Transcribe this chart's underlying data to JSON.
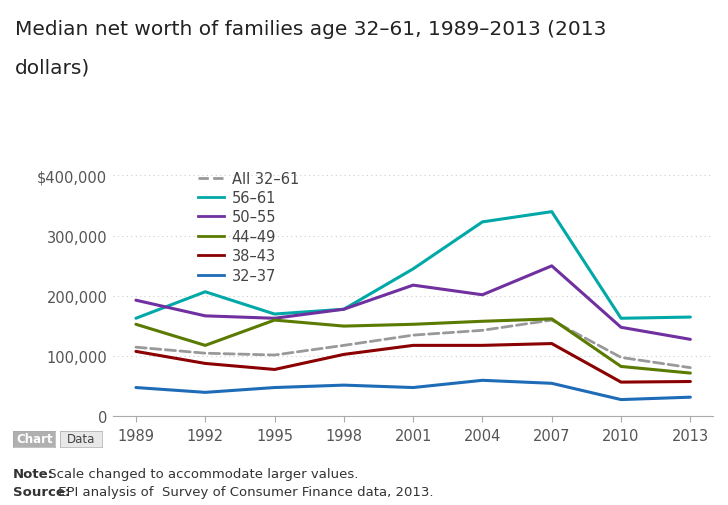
{
  "title_line1": "Median net worth of families age 32–61, 1989–2013 (2013",
  "title_line2": "dollars)",
  "years": [
    1989,
    1992,
    1995,
    1998,
    2001,
    2004,
    2007,
    2010,
    2013
  ],
  "series": {
    "All 32–61": {
      "values": [
        115000,
        105000,
        102000,
        118000,
        135000,
        143000,
        160000,
        98000,
        81000
      ],
      "color": "#999999",
      "style": "dashed",
      "linewidth": 2.0
    },
    "56–61": {
      "values": [
        163000,
        207000,
        170000,
        178000,
        245000,
        323000,
        340000,
        163000,
        165000
      ],
      "color": "#00a8a8",
      "style": "solid",
      "linewidth": 2.2
    },
    "50–55": {
      "values": [
        193000,
        167000,
        163000,
        178000,
        218000,
        202000,
        250000,
        148000,
        128000
      ],
      "color": "#7030a0",
      "style": "solid",
      "linewidth": 2.2
    },
    "44–49": {
      "values": [
        153000,
        118000,
        160000,
        150000,
        153000,
        158000,
        162000,
        83000,
        72000
      ],
      "color": "#5a7a00",
      "style": "solid",
      "linewidth": 2.2
    },
    "38–43": {
      "values": [
        108000,
        88000,
        78000,
        103000,
        118000,
        118000,
        121000,
        57000,
        58000
      ],
      "color": "#8b0000",
      "style": "solid",
      "linewidth": 2.2
    },
    "32–37": {
      "values": [
        48000,
        40000,
        48000,
        52000,
        48000,
        60000,
        55000,
        28000,
        32000
      ],
      "color": "#1e6bb8",
      "style": "solid",
      "linewidth": 2.2
    }
  },
  "legend_order": [
    "All 32–61",
    "56–61",
    "50–55",
    "44–49",
    "38–43",
    "32–37"
  ],
  "ylim": [
    0,
    420000
  ],
  "yticks": [
    0,
    100000,
    200000,
    300000,
    400000
  ],
  "ytick_labels": [
    "0",
    "100,000",
    "200,000",
    "300,000",
    "$400,000"
  ],
  "note_bold": "Note:",
  "note_rest": " Scale changed to accommodate larger values.",
  "source_bold": "Source:",
  "source_rest": " EPI analysis of  Survey of Consumer Finance data, 2013.",
  "background_color": "#ffffff",
  "grid_color": "#cccccc",
  "title_fontsize": 14.5,
  "tick_fontsize": 10.5,
  "legend_fontsize": 10.5,
  "annot_fontsize": 9.5
}
